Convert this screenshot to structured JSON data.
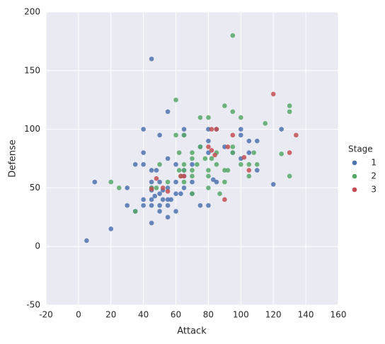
{
  "chart_data": {
    "type": "scatter",
    "x_label": "Attack",
    "y_label": "Defense",
    "legend_title": "Stage",
    "xlim": [
      -20,
      160
    ],
    "xticks": [
      -20,
      0,
      20,
      40,
      60,
      80,
      100,
      120,
      140,
      160
    ],
    "ylim": [
      -50,
      200
    ],
    "yticks": [
      -50,
      0,
      50,
      100,
      150,
      200
    ],
    "grid": true,
    "legend": "right",
    "series": [
      {
        "name": "1",
        "color": "#4c72b0",
        "x": [
          5,
          10,
          20,
          30,
          30,
          35,
          35,
          40,
          40,
          40,
          40,
          40,
          45,
          45,
          45,
          45,
          45,
          45,
          45,
          45,
          47,
          48,
          50,
          50,
          50,
          50,
          50,
          52,
          52,
          55,
          55,
          55,
          55,
          55,
          55,
          57,
          60,
          60,
          60,
          60,
          63,
          65,
          65,
          65,
          65,
          65,
          70,
          70,
          70,
          75,
          75,
          80,
          80,
          80,
          80,
          83,
          85,
          85,
          90,
          95,
          100,
          100,
          100,
          105,
          105,
          110,
          110,
          120,
          125
        ],
        "values": [
          5,
          55,
          15,
          35,
          50,
          70,
          30,
          100,
          80,
          70,
          35,
          40,
          160,
          20,
          65,
          55,
          50,
          48,
          40,
          35,
          43,
          65,
          95,
          55,
          45,
          35,
          30,
          40,
          48,
          115,
          75,
          50,
          40,
          35,
          25,
          40,
          70,
          55,
          45,
          30,
          45,
          100,
          95,
          65,
          60,
          50,
          70,
          55,
          45,
          85,
          35,
          100,
          90,
          80,
          35,
          57,
          100,
          55,
          85,
          80,
          100,
          95,
          75,
          80,
          90,
          90,
          65,
          53,
          100
        ]
      },
      {
        "name": "2",
        "color": "#55a868",
        "x": [
          20,
          25,
          35,
          45,
          48,
          50,
          55,
          60,
          60,
          62,
          62,
          63,
          65,
          65,
          65,
          65,
          70,
          70,
          70,
          70,
          70,
          73,
          75,
          75,
          78,
          80,
          80,
          80,
          80,
          82,
          85,
          85,
          87,
          90,
          90,
          90,
          92,
          95,
          95,
          95,
          95,
          100,
          100,
          105,
          105,
          108,
          110,
          115,
          125,
          130,
          130,
          130
        ],
        "values": [
          55,
          50,
          30,
          50,
          50,
          70,
          55,
          95,
          125,
          65,
          80,
          60,
          65,
          70,
          95,
          55,
          80,
          75,
          65,
          60,
          45,
          70,
          110,
          85,
          75,
          110,
          65,
          60,
          50,
          75,
          80,
          70,
          45,
          120,
          65,
          55,
          65,
          180,
          115,
          85,
          80,
          110,
          70,
          60,
          70,
          80,
          70,
          105,
          79,
          120,
          115,
          60
        ]
      },
      {
        "name": "3",
        "color": "#c44e52",
        "x": [
          45,
          48,
          52,
          55,
          63,
          65,
          80,
          82,
          82,
          84,
          85,
          90,
          92,
          95,
          102,
          105,
          120,
          130,
          134
        ],
        "values": [
          49,
          58,
          50,
          47,
          60,
          60,
          85,
          100,
          82,
          78,
          100,
          40,
          85,
          95,
          76,
          65,
          130,
          80,
          95
        ]
      }
    ]
  }
}
